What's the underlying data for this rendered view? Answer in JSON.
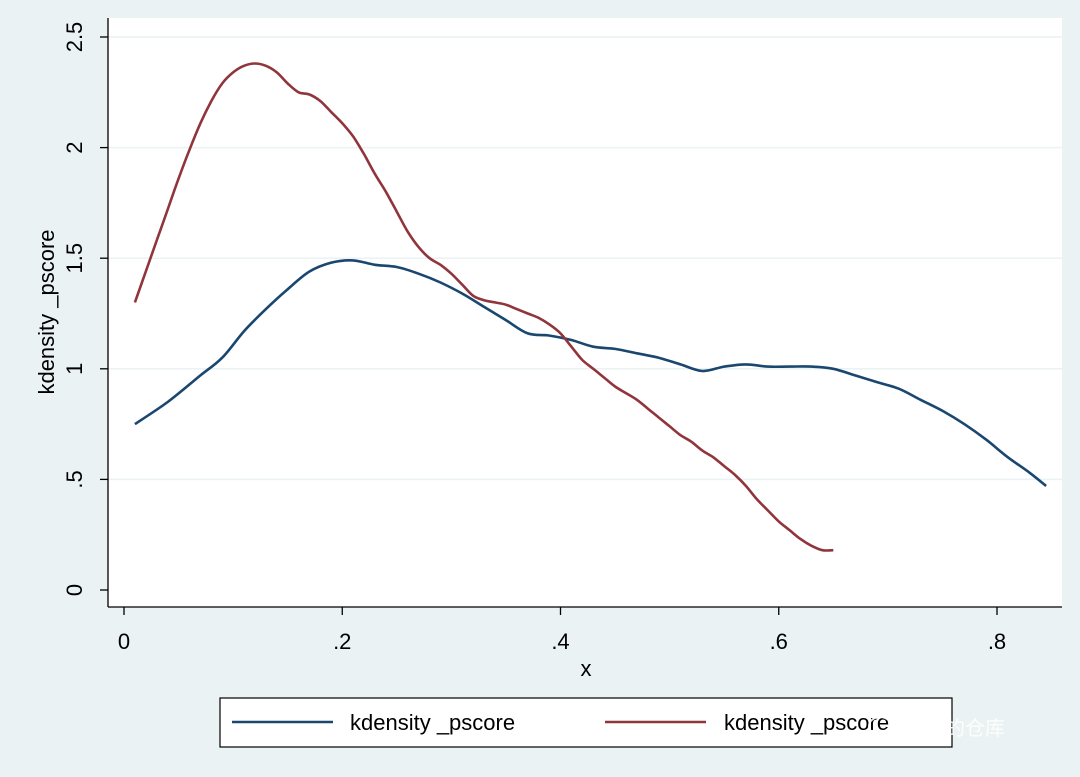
{
  "chart_data": {
    "type": "line",
    "title": "",
    "xlabel": "x",
    "ylabel": "kdensity _pscore",
    "xlim": [
      0,
      0.85
    ],
    "ylim": [
      0,
      2.5
    ],
    "xticks": [
      {
        "value": 0,
        "label": "0"
      },
      {
        "value": 0.2,
        "label": ".2"
      },
      {
        "value": 0.4,
        "label": ".4"
      },
      {
        "value": 0.6,
        "label": ".6"
      },
      {
        "value": 0.8,
        "label": ".8"
      }
    ],
    "yticks": [
      {
        "value": 0,
        "label": "0"
      },
      {
        "value": 0.5,
        "label": ".5"
      },
      {
        "value": 1,
        "label": "1"
      },
      {
        "value": 1.5,
        "label": "1.5"
      },
      {
        "value": 2,
        "label": "2"
      },
      {
        "value": 2.5,
        "label": "2.5"
      }
    ],
    "grid": true,
    "legend_position": "bottom",
    "series": [
      {
        "name": "kdensity _pscore",
        "color": "#1a476f",
        "points": [
          [
            0.01,
            0.75
          ],
          [
            0.04,
            0.85
          ],
          [
            0.07,
            0.97
          ],
          [
            0.09,
            1.05
          ],
          [
            0.11,
            1.17
          ],
          [
            0.13,
            1.27
          ],
          [
            0.15,
            1.36
          ],
          [
            0.17,
            1.44
          ],
          [
            0.19,
            1.48
          ],
          [
            0.21,
            1.49
          ],
          [
            0.23,
            1.47
          ],
          [
            0.25,
            1.46
          ],
          [
            0.27,
            1.43
          ],
          [
            0.29,
            1.39
          ],
          [
            0.31,
            1.34
          ],
          [
            0.33,
            1.28
          ],
          [
            0.35,
            1.22
          ],
          [
            0.37,
            1.16
          ],
          [
            0.39,
            1.15
          ],
          [
            0.41,
            1.13
          ],
          [
            0.43,
            1.1
          ],
          [
            0.45,
            1.09
          ],
          [
            0.47,
            1.07
          ],
          [
            0.49,
            1.05
          ],
          [
            0.51,
            1.02
          ],
          [
            0.53,
            0.99
          ],
          [
            0.55,
            1.01
          ],
          [
            0.57,
            1.02
          ],
          [
            0.59,
            1.01
          ],
          [
            0.61,
            1.01
          ],
          [
            0.63,
            1.01
          ],
          [
            0.65,
            1.0
          ],
          [
            0.67,
            0.97
          ],
          [
            0.69,
            0.94
          ],
          [
            0.71,
            0.91
          ],
          [
            0.73,
            0.86
          ],
          [
            0.75,
            0.81
          ],
          [
            0.77,
            0.75
          ],
          [
            0.79,
            0.68
          ],
          [
            0.81,
            0.6
          ],
          [
            0.83,
            0.53
          ],
          [
            0.845,
            0.47
          ]
        ]
      },
      {
        "name": "kdensity _pscore",
        "color": "#90353b",
        "points": [
          [
            0.01,
            1.3
          ],
          [
            0.02,
            1.44
          ],
          [
            0.03,
            1.58
          ],
          [
            0.04,
            1.72
          ],
          [
            0.05,
            1.86
          ],
          [
            0.06,
            1.99
          ],
          [
            0.07,
            2.11
          ],
          [
            0.08,
            2.21
          ],
          [
            0.09,
            2.29
          ],
          [
            0.1,
            2.34
          ],
          [
            0.11,
            2.37
          ],
          [
            0.12,
            2.38
          ],
          [
            0.13,
            2.37
          ],
          [
            0.14,
            2.34
          ],
          [
            0.15,
            2.29
          ],
          [
            0.16,
            2.25
          ],
          [
            0.17,
            2.24
          ],
          [
            0.18,
            2.21
          ],
          [
            0.19,
            2.16
          ],
          [
            0.2,
            2.11
          ],
          [
            0.21,
            2.05
          ],
          [
            0.22,
            1.97
          ],
          [
            0.23,
            1.88
          ],
          [
            0.24,
            1.8
          ],
          [
            0.25,
            1.71
          ],
          [
            0.26,
            1.62
          ],
          [
            0.27,
            1.55
          ],
          [
            0.28,
            1.5
          ],
          [
            0.29,
            1.47
          ],
          [
            0.3,
            1.43
          ],
          [
            0.31,
            1.38
          ],
          [
            0.32,
            1.33
          ],
          [
            0.33,
            1.31
          ],
          [
            0.34,
            1.3
          ],
          [
            0.35,
            1.29
          ],
          [
            0.36,
            1.27
          ],
          [
            0.37,
            1.25
          ],
          [
            0.38,
            1.23
          ],
          [
            0.39,
            1.2
          ],
          [
            0.4,
            1.16
          ],
          [
            0.41,
            1.1
          ],
          [
            0.42,
            1.04
          ],
          [
            0.43,
            1.0
          ],
          [
            0.44,
            0.96
          ],
          [
            0.45,
            0.92
          ],
          [
            0.46,
            0.89
          ],
          [
            0.47,
            0.86
          ],
          [
            0.48,
            0.82
          ],
          [
            0.49,
            0.78
          ],
          [
            0.5,
            0.74
          ],
          [
            0.51,
            0.7
          ],
          [
            0.52,
            0.67
          ],
          [
            0.53,
            0.63
          ],
          [
            0.54,
            0.6
          ],
          [
            0.55,
            0.56
          ],
          [
            0.56,
            0.52
          ],
          [
            0.57,
            0.47
          ],
          [
            0.58,
            0.41
          ],
          [
            0.59,
            0.36
          ],
          [
            0.6,
            0.31
          ],
          [
            0.61,
            0.27
          ],
          [
            0.62,
            0.23
          ],
          [
            0.63,
            0.2
          ],
          [
            0.64,
            0.18
          ],
          [
            0.65,
            0.18
          ]
        ]
      }
    ]
  },
  "watermark": {
    "text": "LWJ的仓库",
    "icon": "wechat-icon"
  },
  "colors": {
    "background": "#eaf2f3",
    "plot_background": "#ffffff",
    "gridline": "#eaf2f3",
    "axis": "#000000"
  }
}
